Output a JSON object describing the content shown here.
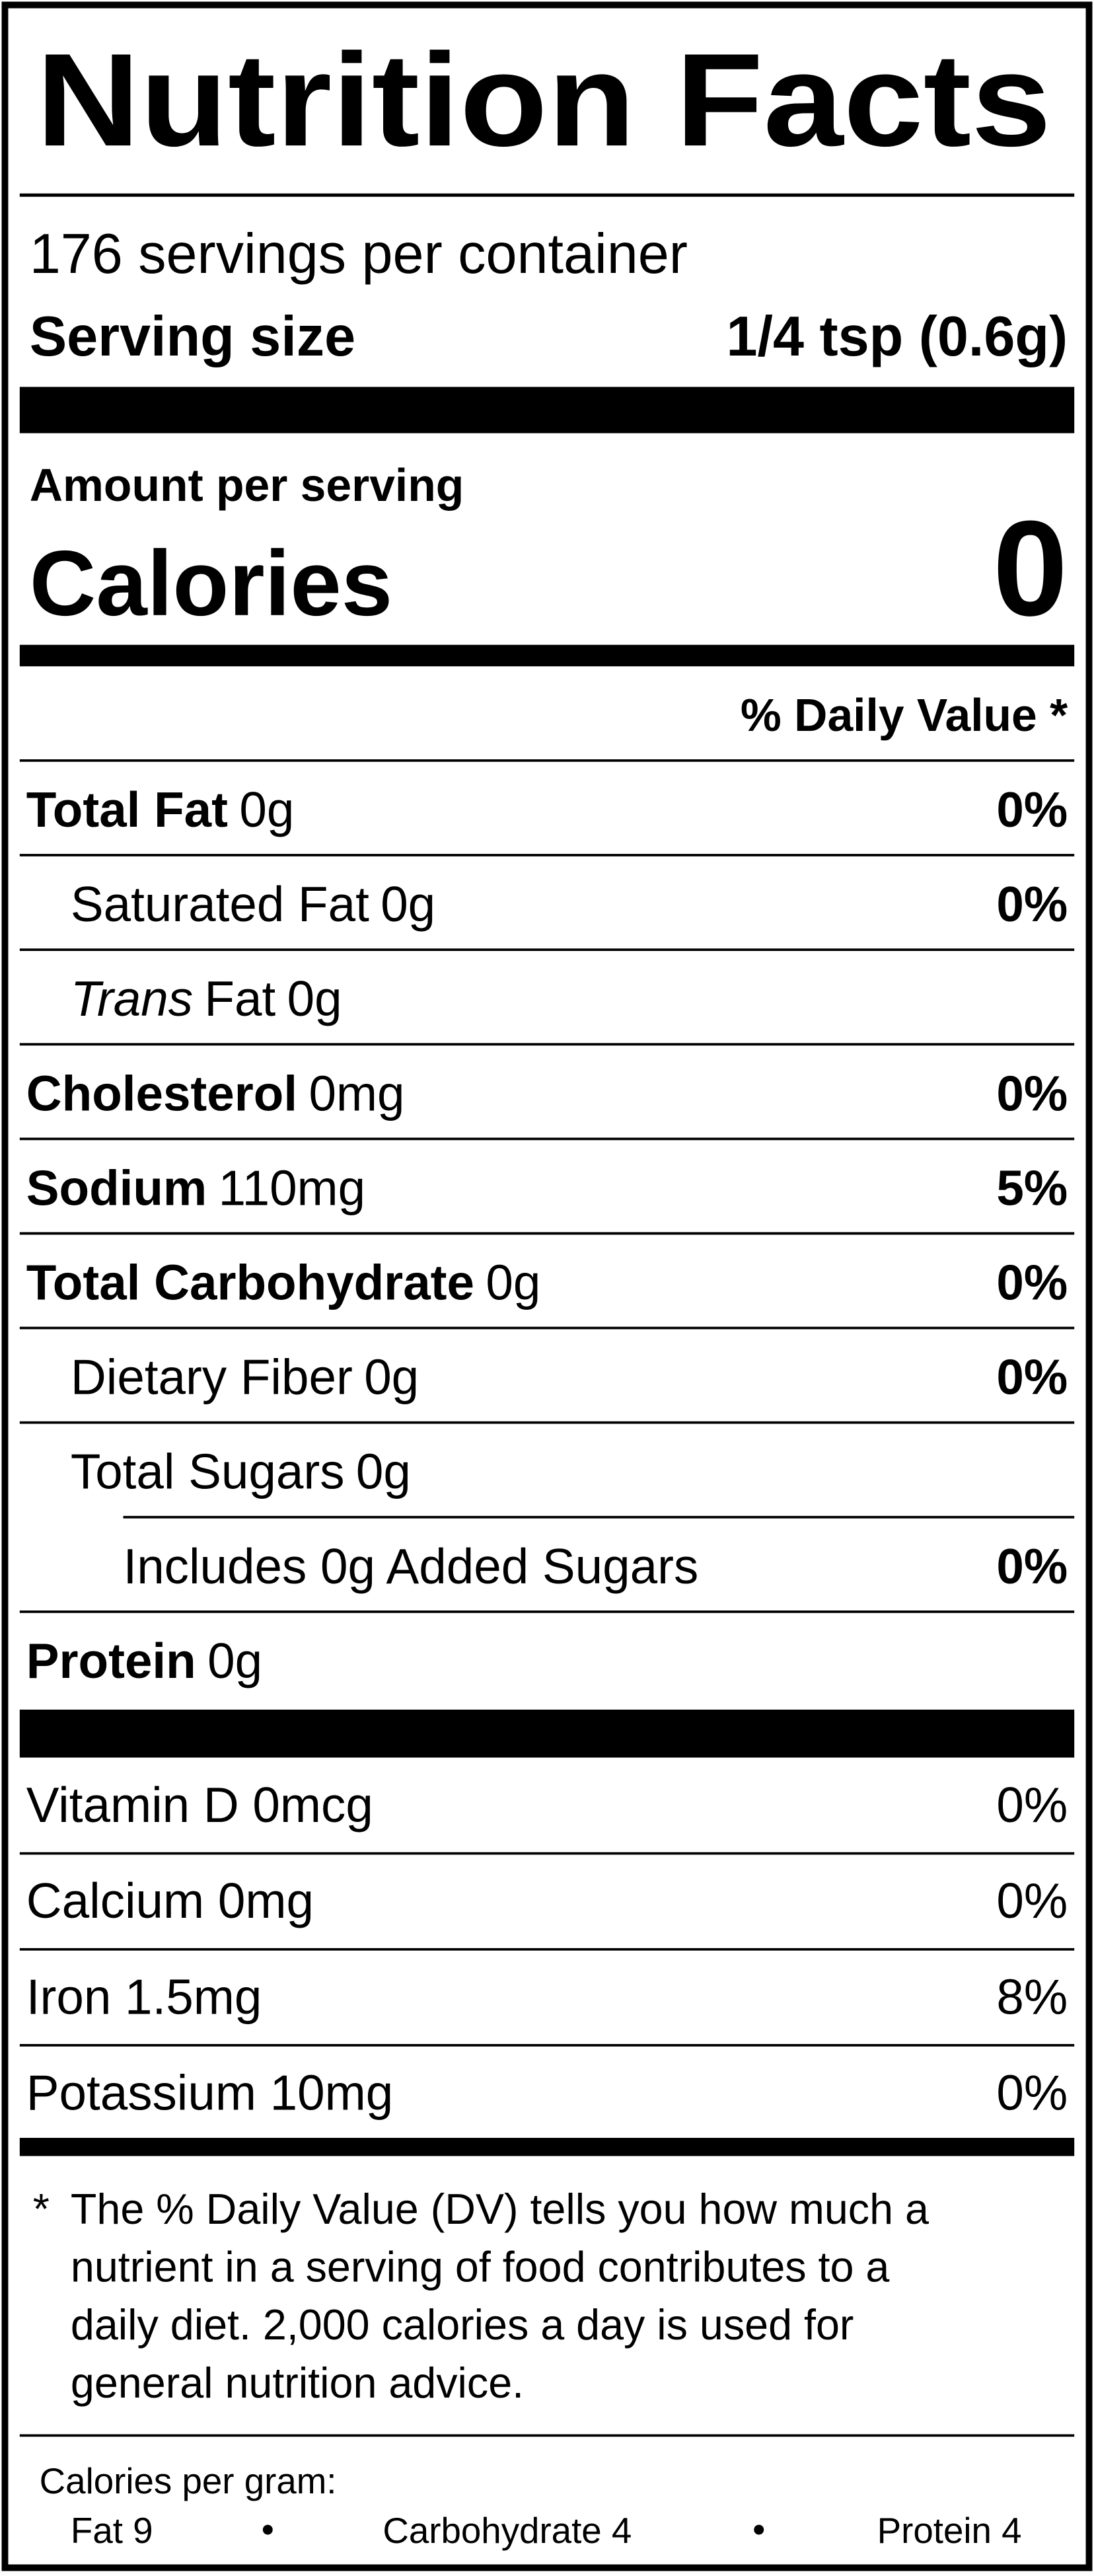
{
  "title": "Nutrition Facts",
  "servings": "176 servings per container",
  "serving_size": {
    "label": "Serving size",
    "value": "1/4 tsp (0.6g)"
  },
  "amount_per_serving": "Amount per serving",
  "calories": {
    "label": "Calories",
    "value": "0"
  },
  "daily_value_header": "% Daily Value *",
  "nutrients": [
    {
      "label": "Total Fat",
      "amount": "0g",
      "dv": "0%",
      "level": 0,
      "bold": true
    },
    {
      "label": "Saturated Fat",
      "amount": "0g",
      "dv": "0%",
      "level": 1,
      "bold": false
    },
    {
      "italic": "Trans",
      "label": "Fat",
      "amount": "0g",
      "level": 1,
      "bold": false
    },
    {
      "label": "Cholesterol",
      "amount": "0mg",
      "dv": "0%",
      "level": 0,
      "bold": true
    },
    {
      "label": "Sodium",
      "amount": "110mg",
      "dv": "5%",
      "level": 0,
      "bold": true
    },
    {
      "label": "Total Carbohydrate",
      "amount": "0g",
      "dv": "0%",
      "level": 0,
      "bold": true
    },
    {
      "label": "Dietary Fiber",
      "amount": "0g",
      "dv": "0%",
      "level": 1,
      "bold": false
    },
    {
      "label": "Total Sugars",
      "amount": "0g",
      "level": 1,
      "bold": false
    },
    {
      "label": "Includes 0g Added Sugars",
      "dv": "0%",
      "level": 2,
      "bold": false
    },
    {
      "label": "Protein",
      "amount": "0g",
      "level": 0,
      "bold": true
    }
  ],
  "vitamins": [
    {
      "label": "Vitamin D 0mcg",
      "dv": "0%"
    },
    {
      "label": "Calcium 0mg",
      "dv": "0%"
    },
    {
      "label": "Iron 1.5mg",
      "dv": "8%"
    },
    {
      "label": "Potassium 10mg",
      "dv": "0%"
    }
  ],
  "footnote": {
    "marker": "*",
    "lines": [
      "The % Daily Value (DV) tells you how much a",
      "nutrient in a serving of food contributes to a",
      "daily diet. 2,000 calories a day is used for",
      "general nutrition advice."
    ]
  },
  "calories_per_gram": {
    "label": "Calories per gram:",
    "items": [
      "Fat 9",
      "Carbohydrate 4",
      "Protein 4"
    ]
  }
}
